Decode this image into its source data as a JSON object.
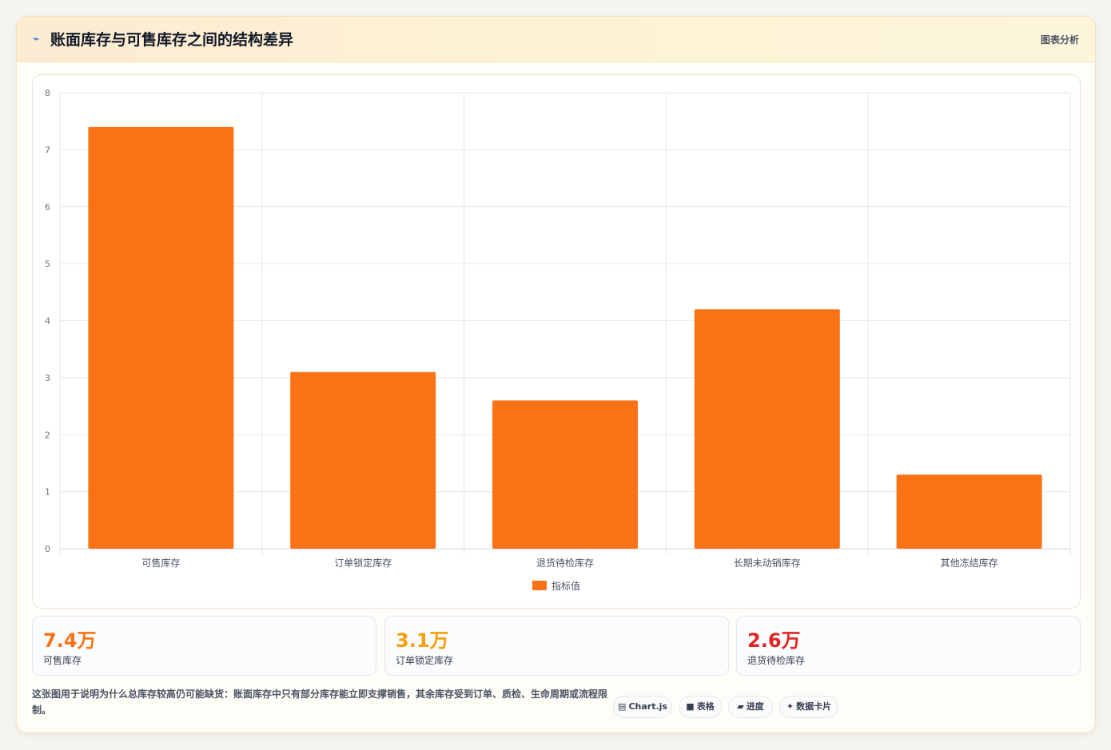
{
  "header": {
    "icon": "lightning-icon",
    "title": "账面库存与可售库存之间的结构差异",
    "action_label": "图表分析"
  },
  "chart_data": {
    "type": "bar",
    "categories": [
      "可售库存",
      "订单锁定库存",
      "退货待检库存",
      "长期未动销库存",
      "其他冻结库存"
    ],
    "series": [
      {
        "name": "指标值",
        "values": [
          7.4,
          3.1,
          2.6,
          4.2,
          1.3
        ],
        "color": "#f97316"
      }
    ],
    "ylim": [
      0,
      8
    ],
    "yticks": [
      0,
      1,
      2,
      3,
      4,
      5,
      6,
      7,
      8
    ],
    "grid": true,
    "legend": "bottom"
  },
  "stats": [
    {
      "value": "7.4万",
      "label": "可售库存",
      "color": "#f97316"
    },
    {
      "value": "3.1万",
      "label": "订单锁定库存",
      "color": "#f59e0b"
    },
    {
      "value": "2.6万",
      "label": "退货待检库存",
      "color": "#dc2626"
    }
  ],
  "footnote": "这张图用于说明为什么总库存较高仍可能缺货：账面库存中只有部分库存能立即支撑销售，其余库存受到订单、质检、生命周期或流程限制。",
  "tags": [
    {
      "icon": "▤",
      "icon_name": "chart-icon",
      "label": "Chart.js"
    },
    {
      "icon": "■",
      "icon_name": "table-icon",
      "label": "表格"
    },
    {
      "icon": "▰",
      "icon_name": "progress-icon",
      "label": "进度"
    },
    {
      "icon": "✦",
      "icon_name": "sparkle-icon",
      "label": "数据卡片"
    }
  ]
}
